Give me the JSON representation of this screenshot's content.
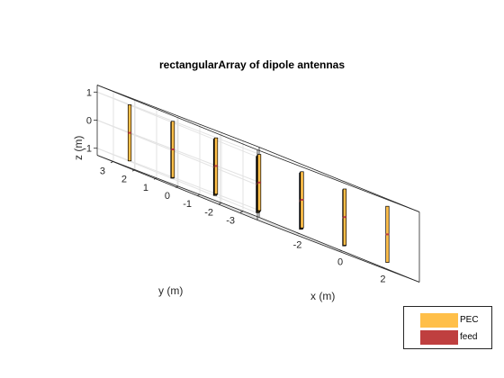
{
  "figure": {
    "title": "rectangularArray of dipole antennas",
    "xlabel": "x (m)",
    "ylabel": "y (m)",
    "zlabel": "z (m)",
    "x_ticks": [
      "-2",
      "0",
      "2"
    ],
    "y_ticks": [
      "3",
      "2",
      "1",
      "0",
      "-1",
      "-2",
      "-3"
    ],
    "z_ticks": [
      "1",
      "0",
      "-1"
    ]
  },
  "legend": {
    "placement": "bottom-right",
    "items": [
      {
        "label": "PEC",
        "color": "#FFBF49"
      },
      {
        "label": "feed",
        "color": "#BF3F3F"
      }
    ]
  },
  "colors": {
    "pec": "#FFBF49",
    "feed": "#BF3F3F",
    "grid": "#E3E3E3",
    "box": "#262626"
  },
  "chart_data": {
    "type": "scatter",
    "title": "rectangularArray of dipole antennas",
    "xlabel": "x (m)",
    "ylabel": "y (m)",
    "zlabel": "z (m)",
    "xlim": [
      -3.75,
      3.75
    ],
    "ylim": [
      -3.75,
      3.75
    ],
    "zlim": [
      -1.25,
      1.25
    ],
    "grid": true,
    "elements": [
      {
        "x": -3,
        "y": 3
      },
      {
        "x": -1,
        "y": 3
      },
      {
        "x": 1,
        "y": 3
      },
      {
        "x": 3,
        "y": 3
      },
      {
        "x": -3,
        "y": 1
      },
      {
        "x": -1,
        "y": 1
      },
      {
        "x": 1,
        "y": 1
      },
      {
        "x": 3,
        "y": 1
      },
      {
        "x": -3,
        "y": -1
      },
      {
        "x": -1,
        "y": -1
      },
      {
        "x": 1,
        "y": -1
      },
      {
        "x": 3,
        "y": -1
      },
      {
        "x": -3,
        "y": -3
      },
      {
        "x": -1,
        "y": -3
      },
      {
        "x": 1,
        "y": -3
      },
      {
        "x": 3,
        "y": -3
      }
    ],
    "dipole_z_extent": [
      -1,
      1
    ]
  }
}
